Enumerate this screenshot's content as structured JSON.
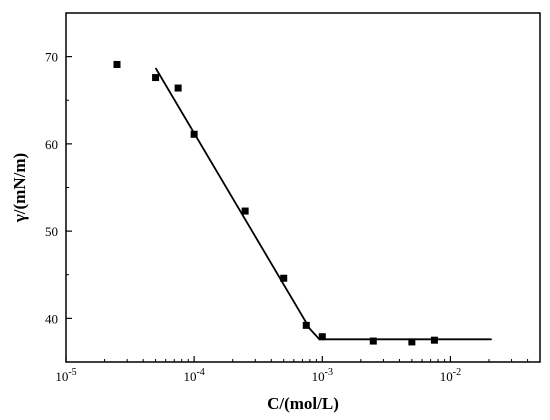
{
  "chart_data": {
    "type": "scatter",
    "title": "",
    "xlabel": "C/(mol/L)",
    "ylabel": "γ/(mN/m)",
    "x_scale": "log",
    "xlim": [
      1e-05,
      0.05
    ],
    "ylim": [
      35,
      75
    ],
    "x_ticks": [
      {
        "value": 1e-05,
        "base": "10",
        "exp": "-5"
      },
      {
        "value": 0.0001,
        "base": "10",
        "exp": "-4"
      },
      {
        "value": 0.001,
        "base": "10",
        "exp": "-3"
      },
      {
        "value": 0.01,
        "base": "10",
        "exp": "-2"
      }
    ],
    "y_ticks": [
      {
        "value": 40,
        "label": "40"
      },
      {
        "value": 50,
        "label": "50"
      },
      {
        "value": 60,
        "label": "60"
      },
      {
        "value": 70,
        "label": "70"
      }
    ],
    "grid": false,
    "legend": "none",
    "series": [
      {
        "kind": "markers",
        "marker": "square",
        "color": "#000000",
        "x": [
          2.5e-05,
          5e-05,
          7.5e-05,
          0.0001,
          0.00025,
          0.0005,
          0.00075,
          0.001,
          0.0025,
          0.005,
          0.0075
        ],
        "y": [
          69.1,
          67.6,
          66.4,
          61.1,
          52.3,
          44.6,
          39.2,
          37.9,
          37.4,
          37.3,
          37.5
        ]
      },
      {
        "kind": "line",
        "color": "#000000",
        "x": [
          5e-05,
          0.0008,
          0.00095,
          0.021
        ],
        "y": [
          68.7,
          38.8,
          37.6,
          37.6
        ]
      }
    ]
  }
}
